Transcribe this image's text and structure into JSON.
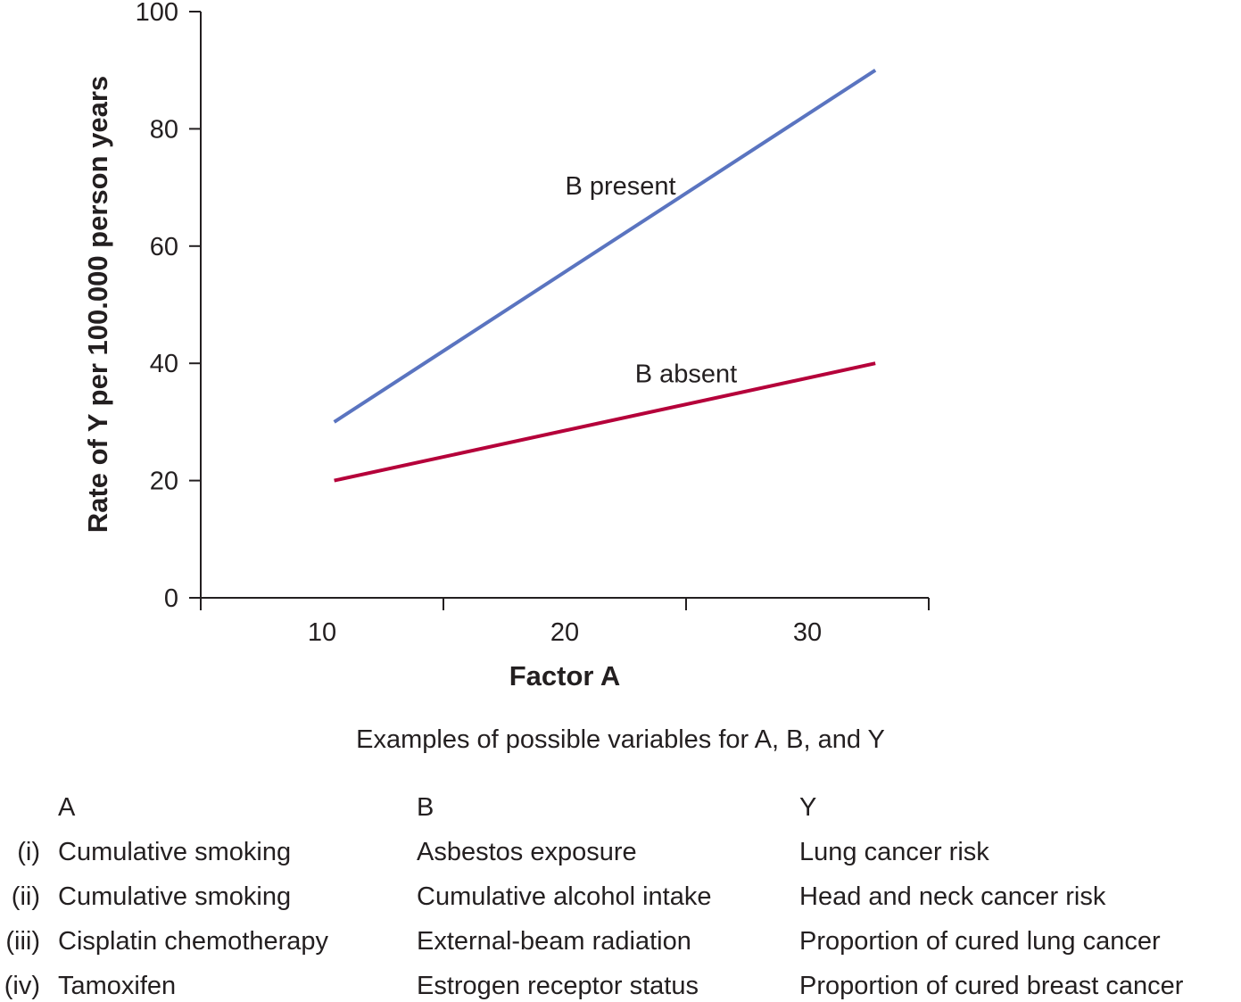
{
  "chart_data": {
    "type": "line",
    "xlabel": "Factor A",
    "ylabel": "Rate of Y per 100.000 person years",
    "xlim": [
      5,
      35
    ],
    "ylim": [
      0,
      100
    ],
    "xticks": [
      10,
      20,
      30
    ],
    "xtick_marks": [
      5,
      15,
      25,
      35
    ],
    "yticks": [
      0,
      20,
      40,
      60,
      80,
      100
    ],
    "grid": false,
    "series": [
      {
        "name": "B present",
        "color": "#5a74c0",
        "x": [
          10.5,
          32.8
        ],
        "y": [
          30,
          90
        ]
      },
      {
        "name": "B absent",
        "color": "#b5003a",
        "x": [
          10.5,
          32.8
        ],
        "y": [
          20,
          40
        ]
      }
    ],
    "annotations": [
      {
        "text": "B present",
        "x": 22.3,
        "y": 70
      },
      {
        "text": "B absent",
        "x": 25,
        "y": 38
      }
    ]
  },
  "table": {
    "caption": "Examples of possible variables for A, B, and Y",
    "headers": [
      "A",
      "B",
      "Y"
    ],
    "rows": [
      {
        "num": "(i)",
        "a": "Cumulative smoking",
        "b": "Asbestos exposure",
        "y": "Lung cancer risk"
      },
      {
        "num": "(ii)",
        "a": "Cumulative smoking",
        "b": "Cumulative alcohol intake",
        "y": "Head and neck cancer risk"
      },
      {
        "num": "(iii)",
        "a": "Cisplatin chemotherapy",
        "b": "External-beam radiation",
        "y": "Proportion of cured lung cancer"
      },
      {
        "num": "(iv)",
        "a": "Tamoxifen",
        "b": "Estrogen receptor status",
        "y": "Proportion of cured breast cancer"
      }
    ]
  }
}
